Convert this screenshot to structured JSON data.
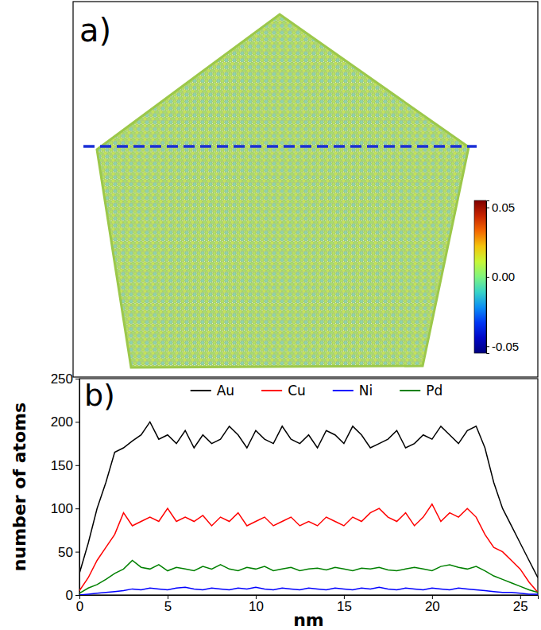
{
  "chart_data": [
    {
      "type": "image",
      "panel_label": "a)",
      "colorbar": {
        "lim": [
          -0.055,
          0.055
        ],
        "ticks": [
          0.05,
          {
            "value": 0,
            "label": "0.00"
          },
          -0.05
        ]
      }
    },
    {
      "type": "line",
      "panel_label": "b)",
      "x_label": "nm",
      "y_label": "number of atoms",
      "xlim": [
        0,
        26
      ],
      "ylim": [
        0,
        250
      ],
      "xticks": [
        0,
        5,
        10,
        15,
        20,
        25
      ],
      "yticks": [
        0,
        50,
        100,
        150,
        200,
        250
      ],
      "legend": "top",
      "x": [
        0,
        0.5,
        1,
        1.5,
        2,
        2.5,
        3,
        3.5,
        4,
        4.5,
        5,
        5.5,
        6,
        6.5,
        7,
        7.5,
        8,
        8.5,
        9,
        9.5,
        10,
        10.5,
        11,
        11.5,
        12,
        12.5,
        13,
        13.5,
        14,
        14.5,
        15,
        15.5,
        16,
        16.5,
        17,
        17.5,
        18,
        18.5,
        19,
        19.5,
        20,
        20.5,
        21,
        21.5,
        22,
        22.5,
        23,
        23.5,
        24,
        24.5,
        25,
        25.5,
        26
      ],
      "series": [
        {
          "name": "Au",
          "color": "#000000",
          "values": [
            25,
            60,
            100,
            130,
            165,
            170,
            178,
            185,
            200,
            180,
            185,
            175,
            190,
            170,
            185,
            175,
            180,
            195,
            185,
            170,
            190,
            180,
            175,
            195,
            180,
            175,
            185,
            170,
            190,
            185,
            175,
            195,
            185,
            170,
            175,
            180,
            190,
            170,
            175,
            185,
            180,
            195,
            185,
            175,
            190,
            195,
            170,
            130,
            100,
            80,
            60,
            40,
            20
          ]
        },
        {
          "name": "Cu",
          "color": "#ff0000",
          "values": [
            5,
            20,
            40,
            55,
            70,
            95,
            80,
            85,
            90,
            85,
            100,
            85,
            90,
            85,
            92,
            80,
            90,
            85,
            95,
            80,
            85,
            90,
            80,
            85,
            90,
            80,
            85,
            80,
            90,
            85,
            80,
            90,
            85,
            95,
            100,
            90,
            85,
            95,
            80,
            90,
            105,
            85,
            95,
            90,
            100,
            90,
            70,
            55,
            50,
            40,
            30,
            15,
            3
          ]
        },
        {
          "name": "Ni",
          "color": "#0000ff",
          "values": [
            0,
            1,
            2,
            3,
            4,
            5,
            7,
            6,
            8,
            7,
            6,
            8,
            9,
            7,
            6,
            8,
            7,
            6,
            8,
            7,
            9,
            7,
            6,
            8,
            7,
            6,
            8,
            7,
            6,
            8,
            7,
            6,
            8,
            7,
            9,
            7,
            6,
            8,
            7,
            6,
            8,
            7,
            6,
            8,
            7,
            6,
            5,
            4,
            3,
            3,
            2,
            1,
            1
          ]
        },
        {
          "name": "Pd",
          "color": "#008000",
          "values": [
            2,
            8,
            12,
            18,
            25,
            30,
            40,
            32,
            30,
            35,
            28,
            32,
            30,
            28,
            33,
            30,
            35,
            30,
            28,
            32,
            30,
            33,
            28,
            30,
            32,
            28,
            30,
            31,
            29,
            32,
            30,
            28,
            31,
            30,
            32,
            29,
            28,
            30,
            32,
            30,
            28,
            33,
            35,
            32,
            30,
            33,
            28,
            22,
            18,
            14,
            10,
            6,
            3
          ]
        }
      ]
    }
  ]
}
